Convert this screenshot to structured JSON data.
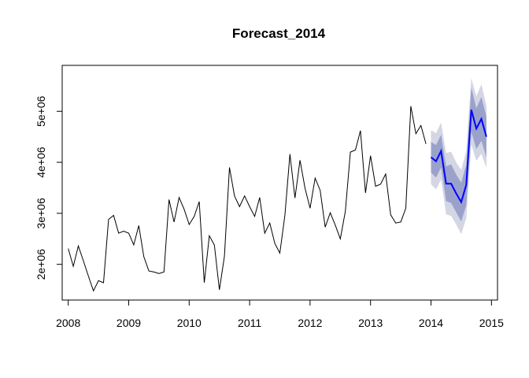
{
  "chart_data": {
    "type": "line",
    "title": "Forecast_2014",
    "xlabel": "",
    "ylabel": "",
    "xlim": [
      2007.9,
      2015.1
    ],
    "ylim": [
      1300000,
      5900000
    ],
    "x_ticks": [
      2008,
      2009,
      2010,
      2011,
      2012,
      2013,
      2014,
      2015
    ],
    "x_tick_labels": [
      "2008",
      "2009",
      "2010",
      "2011",
      "2012",
      "2013",
      "2014",
      "2015"
    ],
    "y_ticks": [
      2000000,
      3000000,
      4000000,
      5000000
    ],
    "y_tick_labels": [
      "2e+06",
      "3e+06",
      "4e+06",
      "5e+06"
    ],
    "grid": false,
    "legend": "none",
    "colors": {
      "history": "#000000",
      "forecast": "#0000ff",
      "band80": "#9aa2cc",
      "band95": "#d4d6e4"
    },
    "history": {
      "start": 2008.0,
      "frequency": 12,
      "values": [
        2310000,
        1960000,
        2360000,
        2070000,
        1770000,
        1480000,
        1680000,
        1640000,
        2880000,
        2960000,
        2610000,
        2650000,
        2610000,
        2380000,
        2760000,
        2150000,
        1870000,
        1850000,
        1820000,
        1850000,
        3270000,
        2830000,
        3310000,
        3080000,
        2780000,
        2940000,
        3230000,
        1640000,
        2560000,
        2380000,
        1500000,
        2160000,
        3900000,
        3340000,
        3130000,
        3340000,
        3130000,
        2940000,
        3310000,
        2610000,
        2810000,
        2410000,
        2220000,
        2960000,
        4160000,
        3300000,
        4040000,
        3490000,
        3100000,
        3690000,
        3450000,
        2730000,
        3010000,
        2770000,
        2500000,
        3040000,
        4200000,
        4240000,
        4620000,
        3400000,
        4130000,
        3530000,
        3570000,
        3770000,
        2970000,
        2810000,
        2830000,
        3100000,
        5100000,
        4560000,
        4720000,
        4360000
      ]
    },
    "forecast": {
      "start": 2014.0,
      "frequency": 12,
      "mean": [
        4100000,
        4020000,
        4220000,
        3580000,
        3580000,
        3390000,
        3220000,
        3560000,
        5030000,
        4660000,
        4850000,
        4500000
      ],
      "lo80": [
        3800000,
        3700000,
        3900000,
        3240000,
        3200000,
        3020000,
        2840000,
        3160000,
        4600000,
        4260000,
        4420000,
        4100000
      ],
      "hi80": [
        4400000,
        4340000,
        4540000,
        3920000,
        3960000,
        3760000,
        3600000,
        3960000,
        5460000,
        5060000,
        5280000,
        4900000
      ],
      "lo95": [
        3570000,
        3470000,
        3660000,
        2980000,
        2950000,
        2780000,
        2590000,
        2900000,
        4350000,
        4030000,
        4170000,
        3890000
      ],
      "hi95": [
        4630000,
        4570000,
        4780000,
        4180000,
        4210000,
        4000000,
        3850000,
        4220000,
        5650000,
        5290000,
        5530000,
        5110000
      ]
    }
  }
}
